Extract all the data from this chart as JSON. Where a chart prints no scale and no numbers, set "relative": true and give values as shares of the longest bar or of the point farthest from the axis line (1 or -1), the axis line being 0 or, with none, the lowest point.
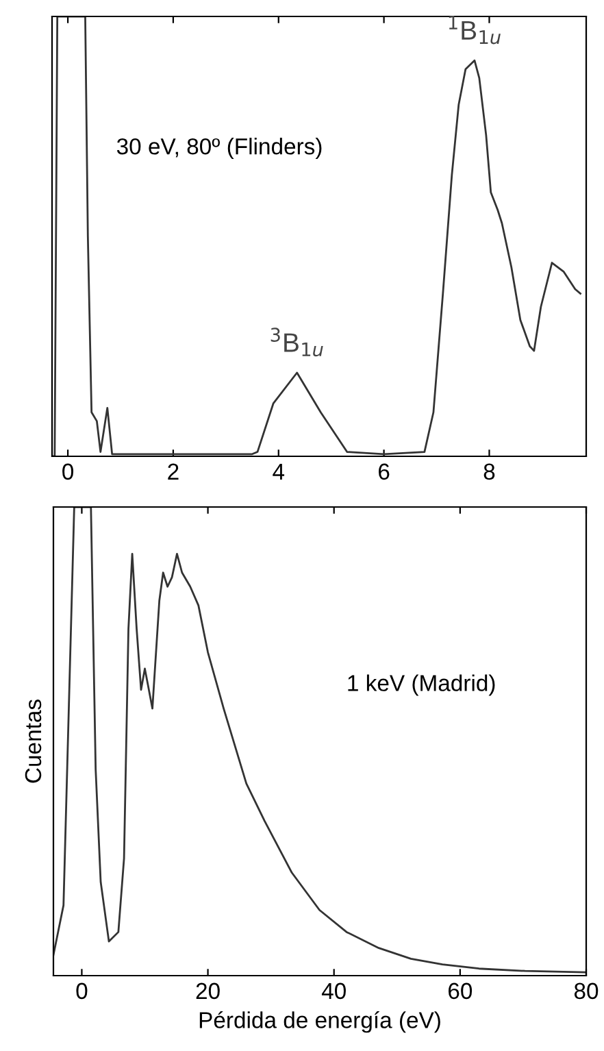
{
  "chart_data": [
    {
      "type": "line",
      "relative": true,
      "color": "#333333",
      "xlim": [
        -0.3,
        9.84
      ],
      "xticks": [
        0,
        2,
        4,
        6,
        8
      ],
      "grid": false,
      "legend": false,
      "marker": "none",
      "line_style": "solid",
      "annotations": [
        "30 eV, 80º (Flinders)",
        {
          "text": "$^{3}$B$_{1u}$",
          "x": 4.35,
          "y": 0.19
        },
        {
          "text": "$^{1}$B$_{1u}$",
          "x": 7.72,
          "y": 0.9
        }
      ],
      "series": [
        {
          "x": [
            -0.3,
            -0.25,
            -0.2,
            0.33,
            0.38,
            0.45,
            0.55,
            0.62,
            0.75,
            0.84,
            1.5,
            2.5,
            3.5,
            3.6,
            3.9,
            4.35,
            4.8,
            5.3,
            6.0,
            6.77,
            6.94,
            7.12,
            7.29,
            7.42,
            7.55,
            7.72,
            7.81,
            7.94,
            8.03,
            8.16,
            8.24,
            8.42,
            8.59,
            8.77,
            8.85,
            8.98,
            9.19,
            9.41,
            9.63,
            9.73
          ],
          "values": [
            0,
            0,
            1,
            1,
            0.5,
            0.1,
            0.08,
            0.01,
            0.11,
            0.005,
            0.005,
            0.005,
            0.005,
            0.01,
            0.12,
            0.19,
            0.1,
            0.01,
            0.005,
            0.01,
            0.1,
            0.37,
            0.64,
            0.8,
            0.88,
            0.9,
            0.86,
            0.73,
            0.6,
            0.56,
            0.53,
            0.43,
            0.31,
            0.25,
            0.24,
            0.34,
            0.44,
            0.42,
            0.38,
            0.37
          ]
        }
      ]
    },
    {
      "type": "line",
      "relative": true,
      "color": "#333333",
      "xlim": [
        -4.5,
        80
      ],
      "xticks": [
        0,
        20,
        40,
        60,
        80
      ],
      "grid": false,
      "legend": false,
      "marker": "none",
      "line_style": "solid",
      "xlabel": "Pérdida de energía (eV)",
      "ylabel": "Cuentas",
      "annotations": [
        "1 keV (Madrid)"
      ],
      "series": [
        {
          "x": [
            -4.5,
            -2.9,
            -1.2,
            1.45,
            2.2,
            3.0,
            4.3,
            5.8,
            6.7,
            7.4,
            8.0,
            8.7,
            9.4,
            10.0,
            10.5,
            11.2,
            12.3,
            12.9,
            13.6,
            14.3,
            15.1,
            15.9,
            17.2,
            18.5,
            20,
            22.5,
            26.1,
            29,
            33.3,
            37.7,
            42,
            47.1,
            52.2,
            57.2,
            63,
            70.3,
            80
          ],
          "values": [
            0.044,
            0.15,
            1,
            1,
            0.44,
            0.2,
            0.073,
            0.093,
            0.25,
            0.74,
            0.9,
            0.74,
            0.61,
            0.655,
            0.62,
            0.57,
            0.8,
            0.86,
            0.83,
            0.85,
            0.9,
            0.86,
            0.83,
            0.79,
            0.69,
            0.57,
            0.41,
            0.33,
            0.22,
            0.14,
            0.093,
            0.059,
            0.036,
            0.024,
            0.015,
            0.01,
            0.007
          ]
        }
      ]
    }
  ]
}
